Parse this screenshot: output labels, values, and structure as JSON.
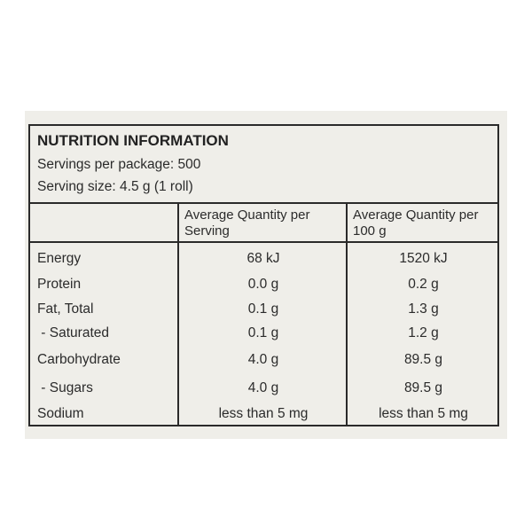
{
  "header": {
    "title": "NUTRITION INFORMATION",
    "servings": "Servings per package: 500",
    "serving_size": "Serving size: 4.5 g (1 roll)"
  },
  "table": {
    "columns": [
      "",
      "Average Quantity per Serving",
      "Average Quantity per 100 g"
    ],
    "rows": [
      [
        "Energy",
        "68 kJ",
        "1520 kJ"
      ],
      [
        "Protein",
        "0.0 g",
        "0.2 g"
      ],
      [
        "Fat, Total",
        "0.1 g",
        "1.3 g"
      ],
      [
        " - Saturated",
        "0.1 g",
        "1.2 g"
      ],
      [
        "Carbohydrate",
        "4.0 g",
        "89.5 g"
      ],
      [
        " - Sugars",
        "4.0 g",
        "89.5 g"
      ],
      [
        "Sodium",
        "less than 5 mg",
        "less than 5 mg"
      ]
    ]
  }
}
